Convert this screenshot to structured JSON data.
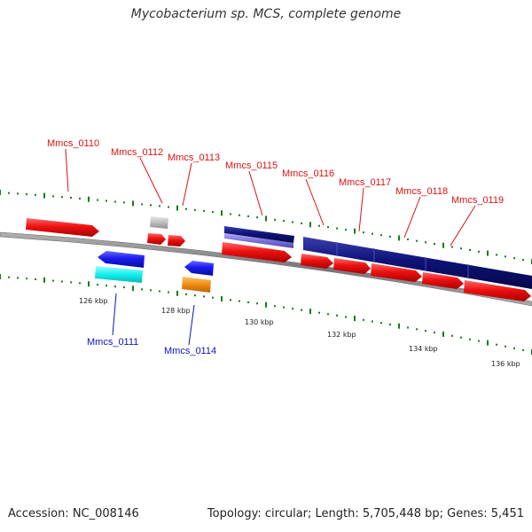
{
  "title": "Mycobacterium sp. MCS, complete genome",
  "footer": {
    "accession": "Accession: NC_008146",
    "summary": "Topology: circular; Length: 5,705,448 bp; Genes: 5,451"
  },
  "colors": {
    "forward_gene": "#ee1111",
    "forward_cds_dark": "#0e1277",
    "forward_cds_light": "#7b72d9",
    "reverse_cds": "#1a1aee",
    "reverse_rna_cyan": "#11f0f0",
    "reverse_orange": "#f08c10",
    "grey_feature": "#bdbdbd",
    "backbone": "#888888",
    "tick_green": "#1a7a1a",
    "label_forward": "#dd1111",
    "label_reverse": "#1111bb"
  },
  "scale_labels": [
    "126 kbp",
    "128 kbp",
    "130 kbp",
    "132 kbp",
    "134 kbp",
    "136 kbp"
  ],
  "forward_labels": [
    "Mmcs_0110",
    "Mmcs_0112",
    "Mmcs_0113",
    "Mmcs_0115",
    "Mmcs_0116",
    "Mmcs_0117",
    "Mmcs_0118",
    "Mmcs_0119"
  ],
  "reverse_labels": [
    "Mmcs_0111",
    "Mmcs_0114"
  ]
}
